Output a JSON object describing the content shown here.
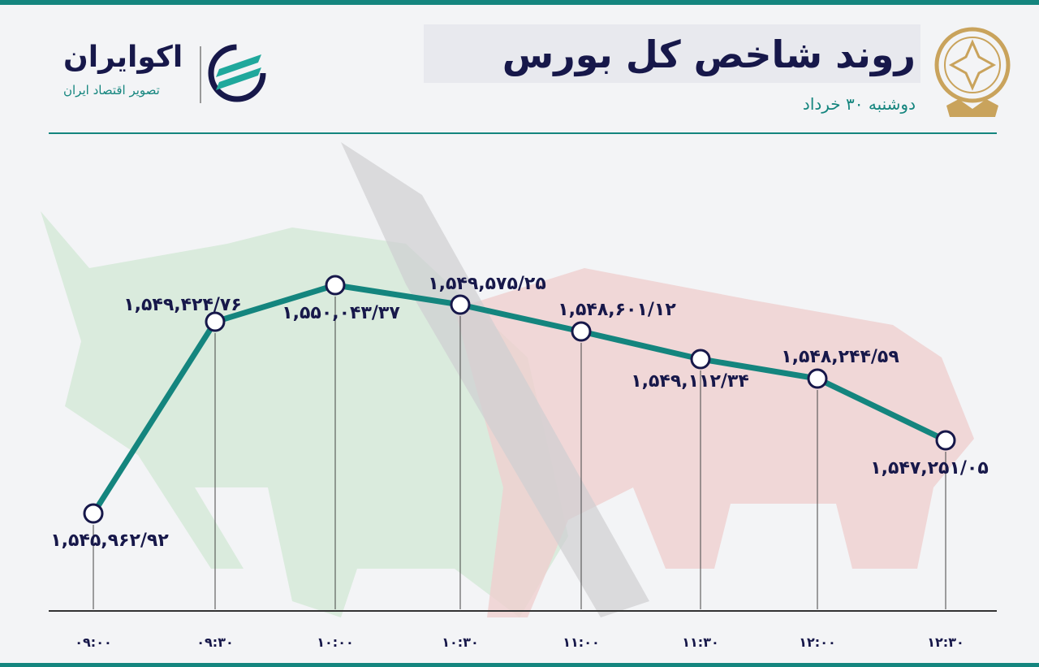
{
  "header": {
    "title": "روند شاخص کل بورس",
    "subtitle": "دوشنبه ۳۰ خرداد"
  },
  "brand": {
    "name": "اکوایران",
    "tagline": "تصویر اقتصاد ایران",
    "seal_name": "بورس"
  },
  "colors": {
    "line": "#14857e",
    "text": "#17184a",
    "bull": "#cfe6d3",
    "bear": "#efcfcf"
  },
  "chart_data": {
    "type": "line",
    "title": "روند شاخص کل بورس",
    "categories": [
      "09:00",
      "09:30",
      "10:00",
      "10:30",
      "11:00",
      "11:30",
      "12:00",
      "12:30"
    ],
    "tick_labels": [
      "۰۹:۰۰",
      "۰۹:۳۰",
      "۱۰:۰۰",
      "۱۰:۳۰",
      "۱۱:۰۰",
      "۱۱:۳۰",
      "۱۲:۰۰",
      "۱۲:۳۰"
    ],
    "values": [
      1545962.92,
      1549424.76,
      1550043.37,
      1549575.25,
      1548601.12,
      1549112.34,
      1548244.59,
      1547251.05
    ],
    "data_labels": [
      "۱,۵۴۵,۹۶۲/۹۲",
      "۱,۵۴۹,۴۲۴/۷۶",
      "۱,۵۵۰,۰۴۳/۳۷",
      "۱,۵۴۹,۵۷۵/۲۵",
      "۱,۵۴۸,۶۰۱/۱۲",
      "۱,۵۴۹,۱۱۲/۳۴",
      "۱,۵۴۸,۲۴۴/۵۹",
      "۱,۵۴۷,۲۵۱/۰۵"
    ],
    "xlabel": "",
    "ylabel": "",
    "grid": false
  }
}
